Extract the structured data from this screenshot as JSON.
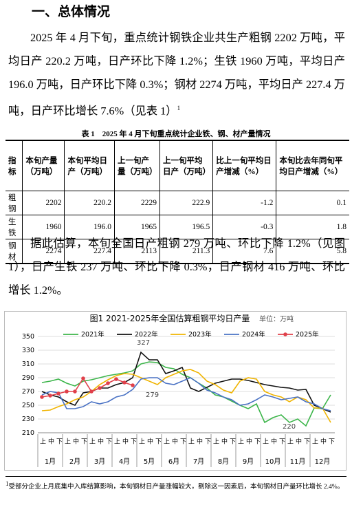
{
  "heading": "一、总体情况",
  "paragraph1": {
    "text": "2025 年 4 月下旬，重点统计钢铁企业共生产粗钢 2202 万吨，平均日产 220.2 万吨，日产环比下降 1.2%；生铁 1960 万吨，平均日产 196.0 万吨，日产环比下降 0.3%；钢材 2274 万吨，平均日产 227.4 万吨，日产环比增长 7.6%（见表 1）",
    "footnote_ref": "1"
  },
  "table": {
    "title": "表 1　2025 年 4 月下旬重点统计企业铁、钢、材产量情况",
    "headers": [
      "指标",
      "本旬产量（万吨）",
      "本旬平均日产（万吨）",
      "上一旬产量（万吨）",
      "上一旬平均日产（万吨）",
      "比上一旬平均日产增减（%）",
      "本旬比去年同旬平均日产增减（%）"
    ],
    "rows": [
      [
        "粗钢",
        "2202",
        "220.2",
        "2229",
        "222.9",
        "-1.2",
        "0.1"
      ],
      [
        "生铁",
        "1960",
        "196.0",
        "1965",
        "196.5",
        "-0.3",
        "1.8"
      ],
      [
        "钢材",
        "2274",
        "227.4",
        "2113",
        "211.3",
        "7.6",
        "5.8"
      ]
    ]
  },
  "paragraph2": "据此估算，本旬全国日产粗钢 279 万吨、环比下降 1.2%（见图 1），日产生铁 237 万吨、环比下降 0.3%，日产钢材 416 万吨、环比增长 1.2%。",
  "chart_data": {
    "type": "line",
    "title": "图1  2021-2025年全国估算粗钢平均日产量",
    "unit": "单位：万吨",
    "categories": [
      "上",
      "中",
      "下",
      "上",
      "中",
      "下",
      "上",
      "中",
      "下",
      "上",
      "中",
      "下",
      "上",
      "中",
      "下",
      "上",
      "中",
      "下",
      "上",
      "中",
      "下",
      "上",
      "中",
      "下",
      "上",
      "中",
      "下",
      "上",
      "中",
      "下",
      "上",
      "中",
      "下",
      "上",
      "中",
      "下"
    ],
    "months": [
      "1月",
      "2月",
      "3月",
      "4月",
      "5月",
      "6月",
      "7月",
      "8月",
      "9月",
      "10月",
      "11月",
      "12月"
    ],
    "ylim": [
      210,
      350
    ],
    "yticks": [
      210,
      230,
      250,
      270,
      290,
      310,
      330,
      350
    ],
    "grid": true,
    "series": [
      {
        "name": "2021年",
        "color": "#3cb54a",
        "markers": false,
        "values": [
          283,
          285,
          288,
          282,
          278,
          285,
          287,
          290,
          293,
          295,
          297,
          300,
          310,
          313,
          312,
          305,
          303,
          295,
          290,
          282,
          275,
          265,
          262,
          256,
          250,
          245,
          252,
          225,
          232,
          236,
          225,
          230,
          220,
          246,
          245,
          265
        ]
      },
      {
        "name": "2022年",
        "color": "#111111",
        "markers": false,
        "values": [
          270,
          265,
          262,
          255,
          250,
          268,
          270,
          275,
          275,
          280,
          283,
          290,
          327,
          316,
          316,
          296,
          300,
          305,
          275,
          270,
          276,
          282,
          285,
          288,
          288,
          286,
          283,
          280,
          278,
          276,
          275,
          272,
          273,
          250,
          245,
          240
        ]
      },
      {
        "name": "2023年",
        "color": "#f0b400",
        "markers": false,
        "values": [
          242,
          243,
          248,
          252,
          258,
          262,
          270,
          280,
          287,
          293,
          296,
          295,
          290,
          285,
          280,
          290,
          295,
          300,
          302,
          297,
          285,
          280,
          272,
          268,
          285,
          290,
          288,
          270,
          265,
          262,
          255,
          262,
          258,
          246,
          246,
          225
        ]
      },
      {
        "name": "2024年",
        "color": "#4a72c4",
        "markers": false,
        "values": [
          265,
          270,
          268,
          245,
          245,
          248,
          255,
          252,
          255,
          262,
          265,
          273,
          288,
          290,
          290,
          282,
          280,
          285,
          290,
          282,
          272,
          268,
          262,
          258,
          250,
          252,
          258,
          265,
          262,
          258,
          260,
          262,
          255,
          252,
          245,
          242
        ]
      },
      {
        "name": "2025年",
        "color": "#e0404a",
        "markers": true,
        "values": [
          262,
          264,
          267,
          270,
          270,
          289,
          270,
          275,
          282,
          288,
          283,
          279,
          null,
          null,
          null,
          null,
          null,
          null,
          null,
          null,
          null,
          null,
          null,
          null,
          null,
          null,
          null,
          null,
          null,
          null,
          null,
          null,
          null,
          null,
          null,
          null
        ]
      }
    ],
    "annotations": [
      "327",
      "279",
      "220"
    ]
  },
  "footnote": {
    "ref": "1",
    "text": "受部分企业上月底集中入库结算影响，本旬钢材日产量涨幅较大，剔除这一因素后，本旬钢材日产量环比增长 2.4%。"
  }
}
